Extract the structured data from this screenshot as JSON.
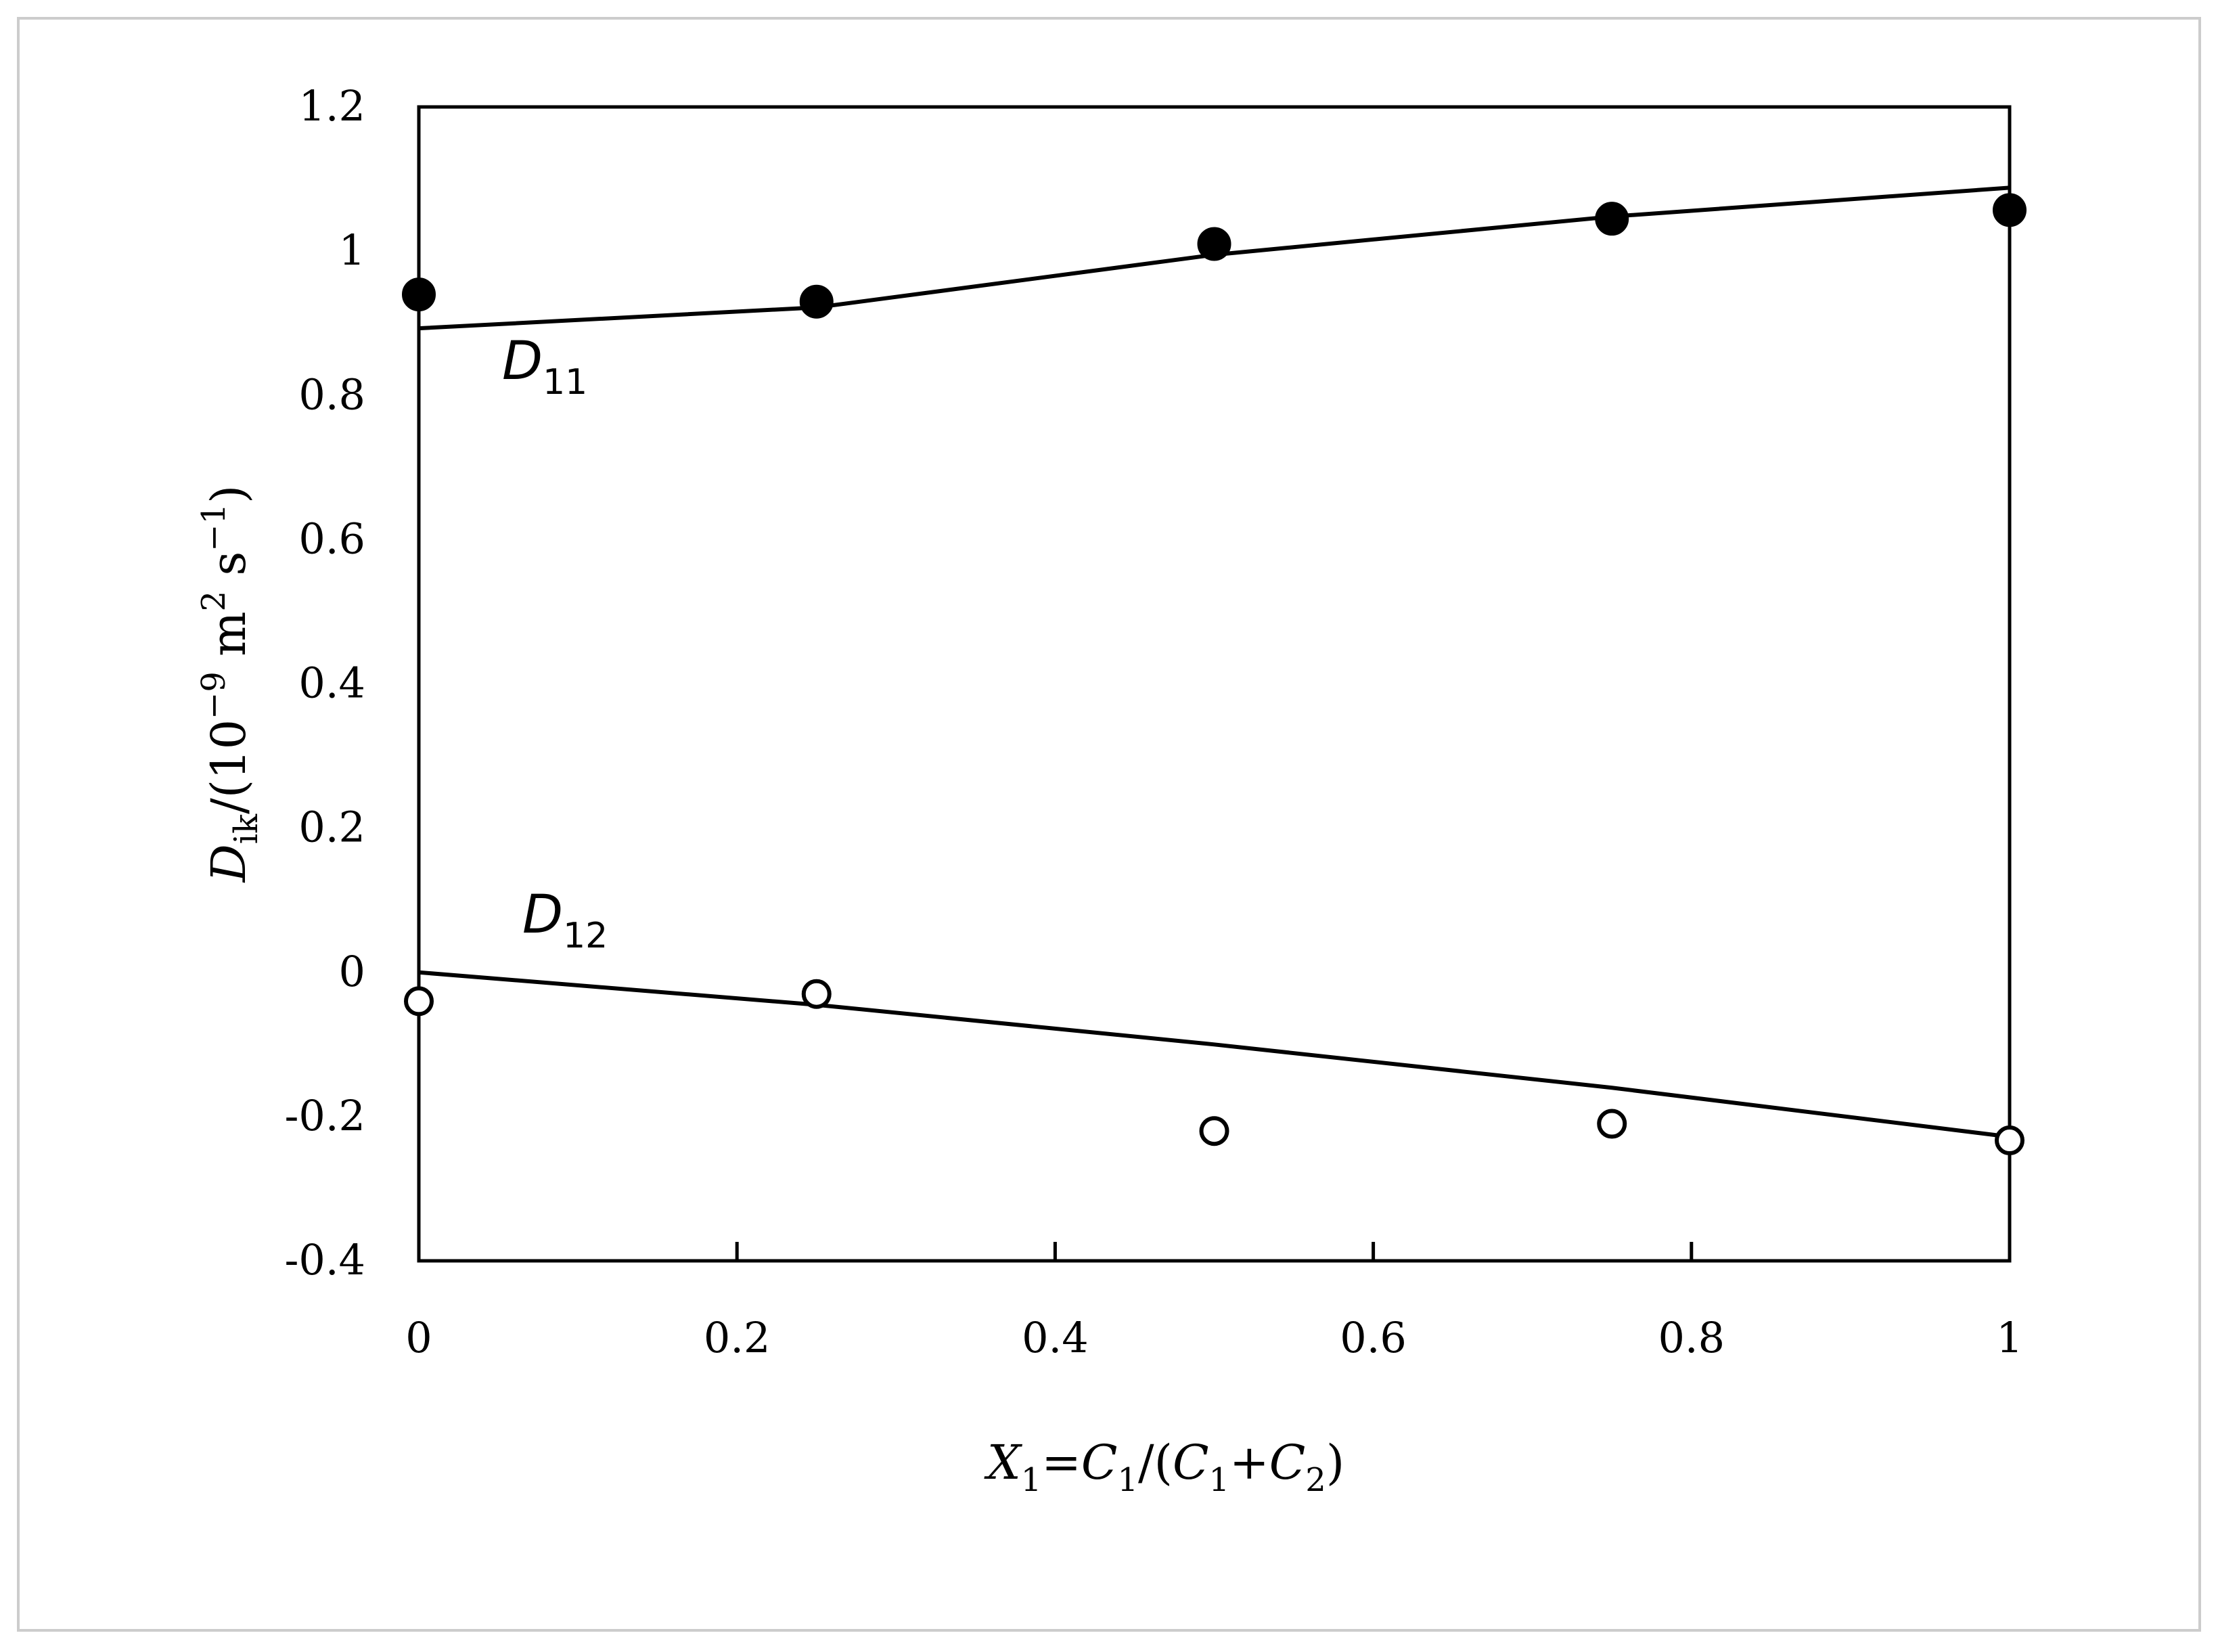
{
  "chart_data": {
    "type": "scatter",
    "xlim": [
      0,
      1
    ],
    "ylim": [
      -0.4,
      1.2
    ],
    "x_ticks": [
      "0",
      "0.2",
      "0.4",
      "0.6",
      "0.8",
      "1"
    ],
    "y_ticks": [
      "1.2",
      "1",
      "0.8",
      "0.6",
      "0.4",
      "0.2",
      "0",
      "-0.2",
      "-0.4"
    ],
    "x_tick_values": [
      0,
      0.2,
      0.4,
      0.6,
      0.8,
      1
    ],
    "y_tick_values": [
      1.2,
      1,
      0.8,
      0.6,
      0.4,
      0.2,
      0,
      -0.2,
      -0.4
    ],
    "xlabel": {
      "parts": [
        {
          "text": "X",
          "style": "italic"
        },
        {
          "text": "1",
          "style": "sub"
        },
        {
          "text": "=",
          "style": "normal"
        },
        {
          "text": "C",
          "style": "italic"
        },
        {
          "text": "1",
          "style": "sub"
        },
        {
          "text": "/(",
          "style": "normal"
        },
        {
          "text": "C",
          "style": "italic"
        },
        {
          "text": "1",
          "style": "sub"
        },
        {
          "text": "+",
          "style": "normal"
        },
        {
          "text": "C",
          "style": "italic"
        },
        {
          "text": "2",
          "style": "sub"
        },
        {
          "text": ")",
          "style": "normal"
        }
      ]
    },
    "ylabel": {
      "parts": [
        {
          "text": "D",
          "style": "italic"
        },
        {
          "text": "ik",
          "style": "sub"
        },
        {
          "text": "/(10",
          "style": "normal"
        },
        {
          "text": "−9",
          "style": "sup"
        },
        {
          "text": " m",
          "style": "normal"
        },
        {
          "text": "2",
          "style": "sup"
        },
        {
          "text": " s",
          "style": "normal"
        },
        {
          "text": "−1",
          "style": "sup"
        },
        {
          "text": ")",
          "style": "normal"
        }
      ]
    },
    "grid": false,
    "series": [
      {
        "name": "D11",
        "label_main": "D",
        "label_sub": "11",
        "marker": "filled-circle",
        "x": [
          0,
          0.25,
          0.5,
          0.75,
          1
        ],
        "y": [
          0.94,
          0.93,
          1.01,
          1.045,
          1.057
        ],
        "line": {
          "x": [
            0,
            0.25,
            0.5,
            0.75,
            1
          ],
          "y": [
            0.893,
            0.922,
            0.995,
            1.048,
            1.088
          ]
        }
      },
      {
        "name": "D12",
        "label_main": "D",
        "label_sub": "12",
        "marker": "open-circle",
        "x": [
          0,
          0.25,
          0.5,
          0.75,
          1
        ],
        "y": [
          -0.04,
          -0.03,
          -0.22,
          -0.21,
          -0.233
        ],
        "line": {
          "x": [
            0,
            0.25,
            0.5,
            0.75,
            1
          ],
          "y": [
            0.0,
            -0.045,
            -0.1,
            -0.16,
            -0.228
          ]
        }
      }
    ],
    "colors": {
      "ink": "#000000",
      "frame": "#cccccc",
      "background": "#ffffff"
    }
  }
}
